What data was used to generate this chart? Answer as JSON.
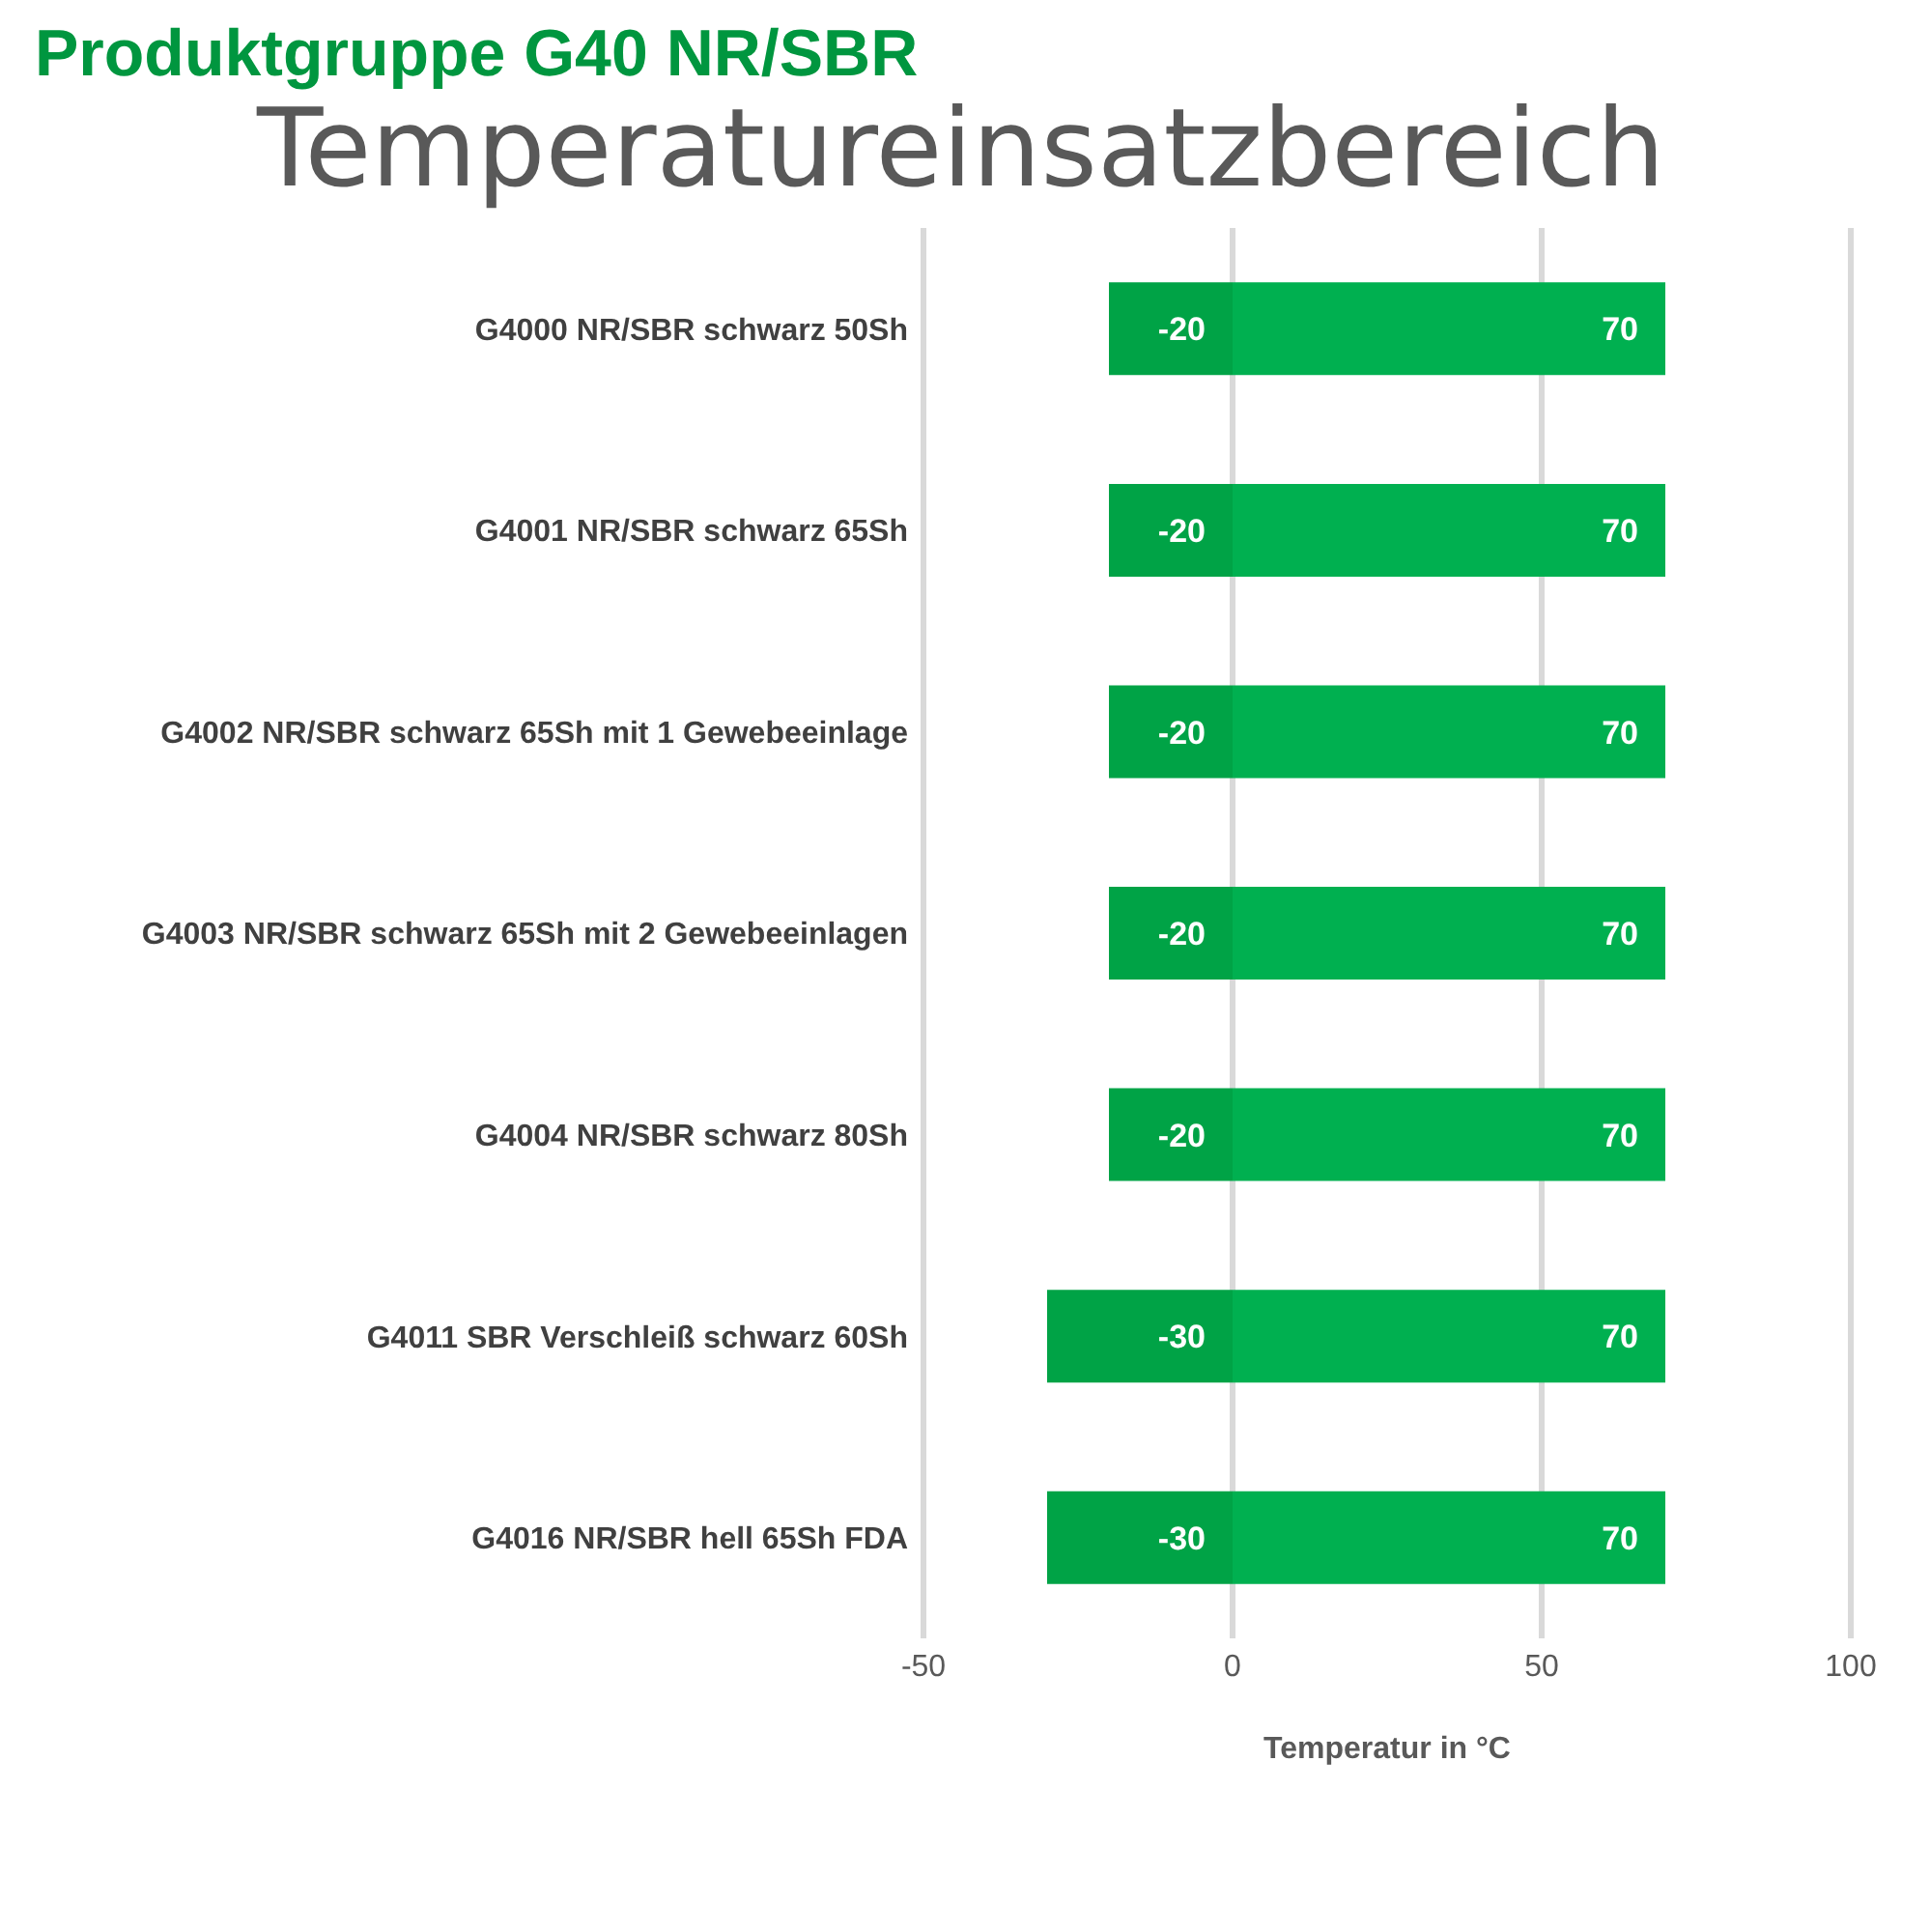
{
  "chart_data": {
    "type": "bar",
    "orientation": "horizontal",
    "stacked": true,
    "title": "Produktgruppe G40 NR/SBR",
    "subtitle": "Temperatureinsatzbereich",
    "xlabel": "Temperatur in °C",
    "categories": [
      "G4000 NR/SBR schwarz 50Sh",
      "G4001 NR/SBR schwarz 65Sh",
      "G4002 NR/SBR schwarz 65Sh mit 1 Gewebeeinlage",
      "G4003 NR/SBR schwarz 65Sh mit 2 Gewebeeinlagen",
      "G4004 NR/SBR schwarz 80Sh",
      "G4011 SBR Verschleiß schwarz 60Sh",
      "G4016 NR/SBR hell 65Sh FDA"
    ],
    "series": [
      {
        "color": "#00a346",
        "values": [
          -20,
          -20,
          -20,
          -20,
          -20,
          -30,
          -30
        ]
      },
      {
        "color": "#00b050",
        "values": [
          70,
          70,
          70,
          70,
          70,
          70,
          70
        ]
      }
    ],
    "xlim": [
      -50,
      100
    ],
    "xticks": [
      -50,
      0,
      50,
      100
    ],
    "grid": "x",
    "data_labels": true,
    "legend": false
  }
}
